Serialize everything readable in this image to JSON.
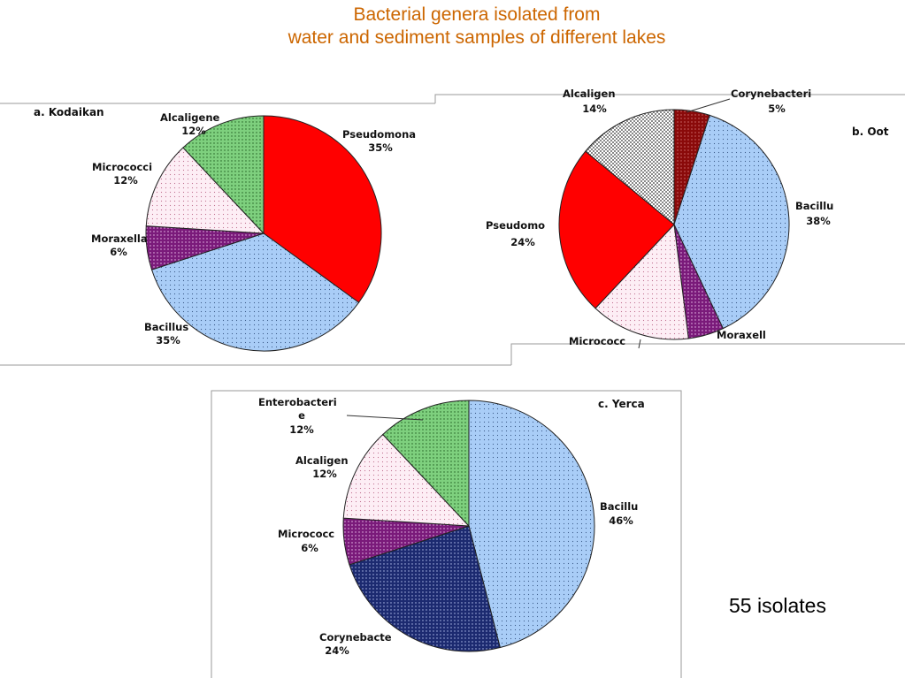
{
  "title": {
    "line1": "Bacterial genera isolated from",
    "line2": "water and sediment samples of different lakes"
  },
  "note": "55 isolates",
  "patterns": {
    "Pseudomonas": "solid-red",
    "Bacillus": "blue-dots",
    "Moraxella": "purple-dots",
    "Micrococcus": "pink-dots",
    "Alcaligenes": "green-dots",
    "Corynebacterium": "navy-dots",
    "Corynebacterium_b": "darkred-dots",
    "Alcaligenes_b": "gray-check"
  },
  "chart_data": [
    {
      "type": "pie",
      "title": "a. Kodaikan",
      "slices": [
        {
          "label": "Pseudomona",
          "value": 35,
          "value_label": "35%",
          "pattern": "Pseudomonas"
        },
        {
          "label": "Bacillus",
          "value": 35,
          "value_label": "35%",
          "pattern": "Bacillus"
        },
        {
          "label": "Moraxella",
          "value": 6,
          "value_label": "6%",
          "pattern": "Moraxella"
        },
        {
          "label": "Micrococci",
          "value": 12,
          "value_label": "12%",
          "pattern": "Micrococcus"
        },
        {
          "label": "Alcaligene",
          "value": 12,
          "value_label": "12%",
          "pattern": "Alcaligenes"
        }
      ]
    },
    {
      "type": "pie",
      "title": "b. Oot",
      "slices": [
        {
          "label": "Corynebacteri",
          "value": 5,
          "value_label": "5%",
          "pattern": "Corynebacterium_b"
        },
        {
          "label": "Bacillu",
          "value": 38,
          "value_label": "38%",
          "pattern": "Bacillus"
        },
        {
          "label": "Moraxell",
          "value": 5,
          "value_label": "",
          "pattern": "Moraxella"
        },
        {
          "label": "Micrococc",
          "value": 14,
          "value_label": "",
          "pattern": "Micrococcus"
        },
        {
          "label": "Pseudomo",
          "value": 24,
          "value_label": "24%",
          "pattern": "Pseudomonas"
        },
        {
          "label": "Alcaligen",
          "value": 14,
          "value_label": "14%",
          "pattern": "Alcaligenes_b"
        }
      ]
    },
    {
      "type": "pie",
      "title": "c. Yerca",
      "slices": [
        {
          "label": "Bacillu",
          "value": 46,
          "value_label": "46%",
          "pattern": "Bacillus"
        },
        {
          "label": "Corynebacte",
          "value": 24,
          "value_label": "24%",
          "pattern": "Corynebacterium"
        },
        {
          "label": "Micrococc",
          "value": 6,
          "value_label": "6%",
          "pattern": "Moraxella"
        },
        {
          "label": "Alcaligen",
          "value": 12,
          "value_label": "12%",
          "pattern": "Micrococcus"
        },
        {
          "label": "Enterobacteri",
          "label2": "e",
          "value": 12,
          "value_label": "12%",
          "pattern": "Alcaligenes"
        }
      ]
    }
  ]
}
